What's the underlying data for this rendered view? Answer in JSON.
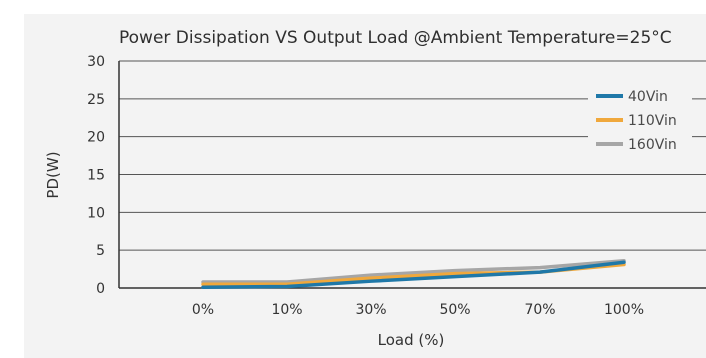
{
  "chart_data": {
    "type": "line",
    "title": "Power Dissipation VS Output Load @Ambient Temperature=25°C",
    "xlabel": "Load (%)",
    "ylabel": "PD(W)",
    "categories": [
      "0%",
      "10%",
      "30%",
      "50%",
      "70%",
      "100%"
    ],
    "ylim": [
      0,
      30
    ],
    "yticks": [
      0,
      5,
      10,
      15,
      20,
      25,
      30
    ],
    "grid": true,
    "legend_position": "right",
    "series": [
      {
        "name": "40Vin",
        "color": "#1f78a8",
        "values": [
          0.1,
          0.2,
          0.9,
          1.5,
          2.1,
          3.4
        ]
      },
      {
        "name": "110Vin",
        "color": "#f0a83c",
        "values": [
          0.5,
          0.5,
          1.3,
          1.9,
          2.1,
          3.1
        ]
      },
      {
        "name": "160Vin",
        "color": "#a6a6a6",
        "values": [
          0.8,
          0.8,
          1.7,
          2.3,
          2.7,
          3.6
        ]
      }
    ]
  }
}
